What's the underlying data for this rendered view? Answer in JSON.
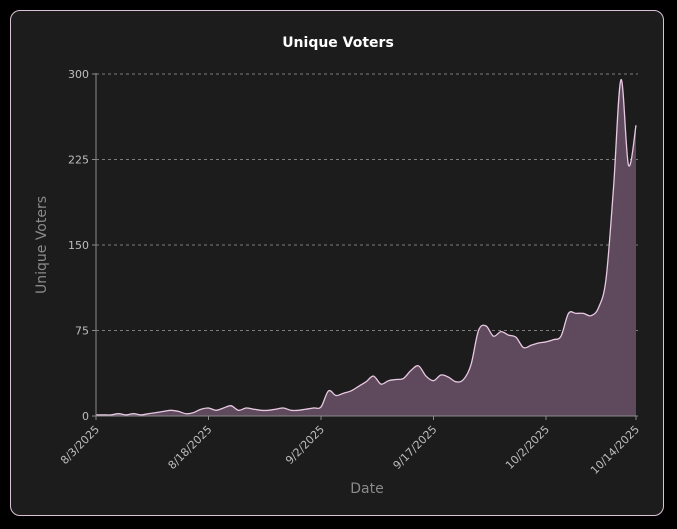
{
  "chart_data": {
    "type": "area",
    "title": "Unique Voters",
    "xlabel": "Date",
    "ylabel": "Unique Voters",
    "ylim": [
      0,
      300
    ],
    "yticks": [
      0,
      75,
      150,
      225,
      300
    ],
    "xticks": [
      "8/3/2025",
      "8/18/2025",
      "9/2/2025",
      "9/17/2025",
      "10/2/2025",
      "10/14/2025"
    ],
    "grid": "horizontal-dashed",
    "colors": {
      "line": "#e8c8e2",
      "fill": "#5e4a5c",
      "grid": "#bdbdbd",
      "axis": "#8a8a8a"
    },
    "x": [
      "2025-08-03",
      "2025-08-04",
      "2025-08-05",
      "2025-08-06",
      "2025-08-07",
      "2025-08-08",
      "2025-08-09",
      "2025-08-10",
      "2025-08-11",
      "2025-08-12",
      "2025-08-13",
      "2025-08-14",
      "2025-08-15",
      "2025-08-16",
      "2025-08-17",
      "2025-08-18",
      "2025-08-19",
      "2025-08-20",
      "2025-08-21",
      "2025-08-22",
      "2025-08-23",
      "2025-08-24",
      "2025-08-25",
      "2025-08-26",
      "2025-08-27",
      "2025-08-28",
      "2025-08-29",
      "2025-08-30",
      "2025-08-31",
      "2025-09-01",
      "2025-09-02",
      "2025-09-03",
      "2025-09-04",
      "2025-09-05",
      "2025-09-06",
      "2025-09-07",
      "2025-09-08",
      "2025-09-09",
      "2025-09-10",
      "2025-09-11",
      "2025-09-12",
      "2025-09-13",
      "2025-09-14",
      "2025-09-15",
      "2025-09-16",
      "2025-09-17",
      "2025-09-18",
      "2025-09-19",
      "2025-09-20",
      "2025-09-21",
      "2025-09-22",
      "2025-09-23",
      "2025-09-24",
      "2025-09-25",
      "2025-09-26",
      "2025-09-27",
      "2025-09-28",
      "2025-09-29",
      "2025-09-30",
      "2025-10-01",
      "2025-10-02",
      "2025-10-03",
      "2025-10-04",
      "2025-10-05",
      "2025-10-06",
      "2025-10-07",
      "2025-10-08",
      "2025-10-09",
      "2025-10-10",
      "2025-10-11",
      "2025-10-12",
      "2025-10-13",
      "2025-10-14"
    ],
    "series": [
      {
        "values": [
          1,
          1,
          1,
          2,
          1,
          2,
          1,
          2,
          3,
          4,
          5,
          4,
          2,
          3,
          6,
          7,
          5,
          7,
          9,
          5,
          7,
          6,
          5,
          5,
          6,
          7,
          5,
          5,
          6,
          7,
          8,
          22,
          18,
          20,
          22,
          26,
          30,
          35,
          28,
          31,
          32,
          33,
          40,
          44,
          35,
          31,
          36,
          34,
          30,
          32,
          45,
          75,
          79,
          70,
          74,
          71,
          69,
          60,
          62,
          64,
          65,
          67,
          70,
          90,
          90,
          90,
          88,
          95,
          120,
          200,
          295,
          220,
          255
        ]
      }
    ]
  }
}
